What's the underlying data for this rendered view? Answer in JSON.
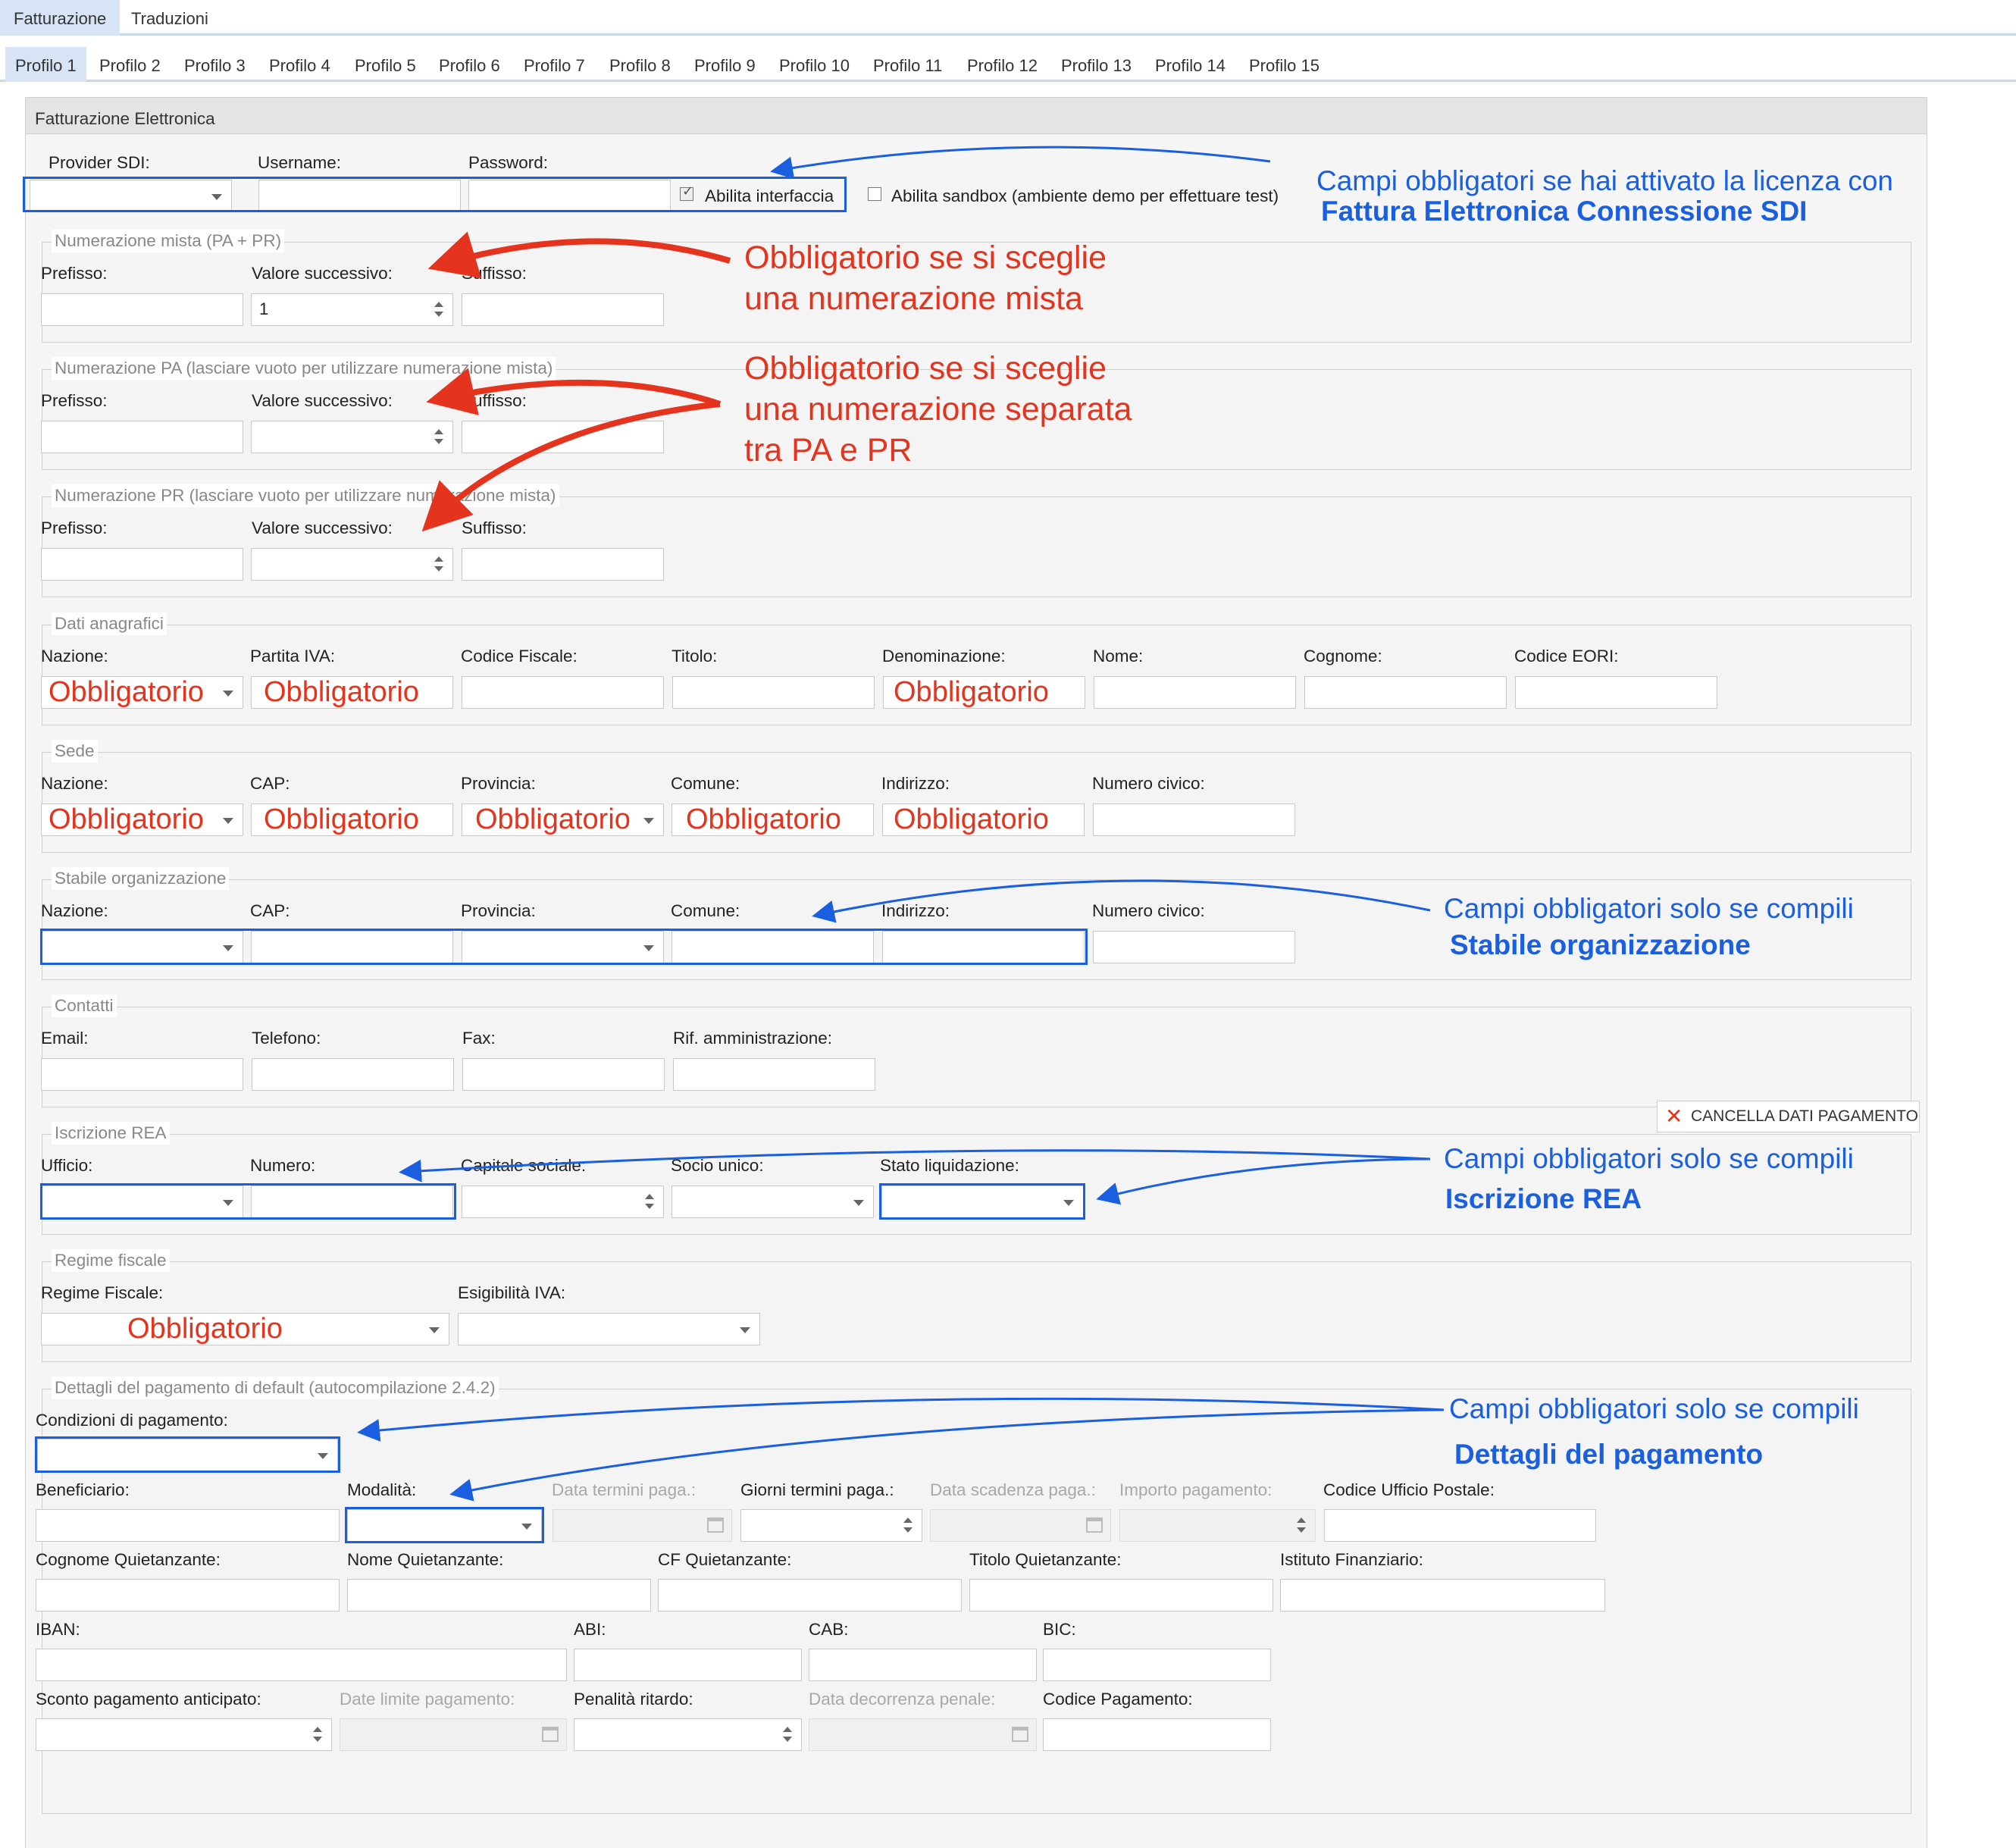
{
  "top_tabs": [
    "Fatturazione",
    "Traduzioni"
  ],
  "profile_tabs": [
    "Profilo 1",
    "Profilo 2",
    "Profilo 3",
    "Profilo 4",
    "Profilo 5",
    "Profilo 6",
    "Profilo 7",
    "Profilo 8",
    "Profilo 9",
    "Profilo 10",
    "Profilo 11",
    "Profilo 12",
    "Profilo 13",
    "Profilo 14",
    "Profilo 15"
  ],
  "panel_title": "Fatturazione Elettronica",
  "sdi": {
    "provider_label": "Provider SDI:",
    "username_label": "Username:",
    "password_label": "Password:",
    "abilita_interfaccia": "Abilita interfaccia",
    "abilita_sandbox": "Abilita sandbox (ambiente demo per effettuare test)"
  },
  "num_mista": {
    "legend": "Numerazione mista (PA + PR)",
    "prefisso": "Prefisso:",
    "valore": "Valore successivo:",
    "suffisso": "Suffisso:",
    "valore_value": "1"
  },
  "num_pa": {
    "legend": "Numerazione PA (lasciare vuoto per utilizzare numerazione mista)",
    "prefisso": "Prefisso:",
    "valore": "Valore successivo:",
    "suffisso": "Suffisso:"
  },
  "num_pr": {
    "legend": "Numerazione PR (lasciare vuoto per utilizzare numerazione mista)",
    "prefisso": "Prefisso:",
    "valore": "Valore successivo:",
    "suffisso": "Suffisso:"
  },
  "anagrafici": {
    "legend": "Dati anagrafici",
    "nazione": "Nazione:",
    "partita_iva": "Partita IVA:",
    "codice_fiscale": "Codice Fiscale:",
    "titolo": "Titolo:",
    "denominazione": "Denominazione:",
    "nome": "Nome:",
    "cognome": "Cognome:",
    "eori": "Codice EORI:"
  },
  "sede": {
    "legend": "Sede",
    "nazione": "Nazione:",
    "cap": "CAP:",
    "provincia": "Provincia:",
    "comune": "Comune:",
    "indirizzo": "Indirizzo:",
    "civico": "Numero civico:"
  },
  "stabile": {
    "legend": "Stabile organizzazione",
    "nazione": "Nazione:",
    "cap": "CAP:",
    "provincia": "Provincia:",
    "comune": "Comune:",
    "indirizzo": "Indirizzo:",
    "civico": "Numero civico:"
  },
  "contatti": {
    "legend": "Contatti",
    "email": "Email:",
    "telefono": "Telefono:",
    "fax": "Fax:",
    "rif": "Rif. amministrazione:"
  },
  "rea": {
    "legend": "Iscrizione REA",
    "ufficio": "Ufficio:",
    "numero": "Numero:",
    "capitale": "Capitale sociale:",
    "socio": "Socio unico:",
    "stato": "Stato liquidazione:"
  },
  "regime": {
    "legend": "Regime fiscale",
    "regime": "Regime Fiscale:",
    "esigibilita": "Esigibilità IVA:"
  },
  "pagamento": {
    "legend": "Dettagli del pagamento di default (autocompilazione 2.4.2)",
    "condizioni": "Condizioni di pagamento:",
    "beneficiario": "Beneficiario:",
    "modalita": "Modalità:",
    "data_termini": "Data termini paga.:",
    "giorni_termini": "Giorni termini paga.:",
    "data_scadenza": "Data scadenza paga.:",
    "importo": "Importo pagamento:",
    "codice_ufficio": "Codice Ufficio Postale:",
    "cognome_q": "Cognome Quietanzante:",
    "nome_q": "Nome Quietanzante:",
    "cf_q": "CF Quietanzante:",
    "titolo_q": "Titolo Quietanzante:",
    "istituto": "Istituto Finanziario:",
    "iban": "IBAN:",
    "abi": "ABI:",
    "cab": "CAB:",
    "bic": "BIC:",
    "sconto": "Sconto pagamento anticipato:",
    "date_limite": "Date limite pagamento:",
    "penalita": "Penalità ritardo:",
    "data_decorrenza": "Data decorrenza penale:",
    "codice_pagamento": "Codice Pagamento:",
    "cancella": "CANCELLA DATI PAGAMENTO"
  },
  "required_text": "Obbligatorio",
  "annotations": {
    "sdi_line1": "Campi obbligatori se hai attivato la licenza con",
    "sdi_line2": "Fattura Elettronica Connessione SDI",
    "mista_line1": "Obbligatorio se si sceglie",
    "mista_line2": "una numerazione mista",
    "separata_line1": "Obbligatorio se si sceglie",
    "separata_line2": "una numerazione separata",
    "separata_line3": "tra PA e PR",
    "stabile_line1": "Campi obbligatori solo se compili",
    "stabile_line2": "Stabile organizzazione",
    "rea_line1": "Campi obbligatori solo se compili",
    "rea_line2": "Iscrizione REA",
    "pagamento_line1": "Campi obbligatori solo se compili",
    "pagamento_line2": "Dettagli del pagamento"
  },
  "colors": {
    "annotation_red": "#e4341e",
    "annotation_blue": "#1a5fe0",
    "tab_active": "#d6e4f5"
  }
}
